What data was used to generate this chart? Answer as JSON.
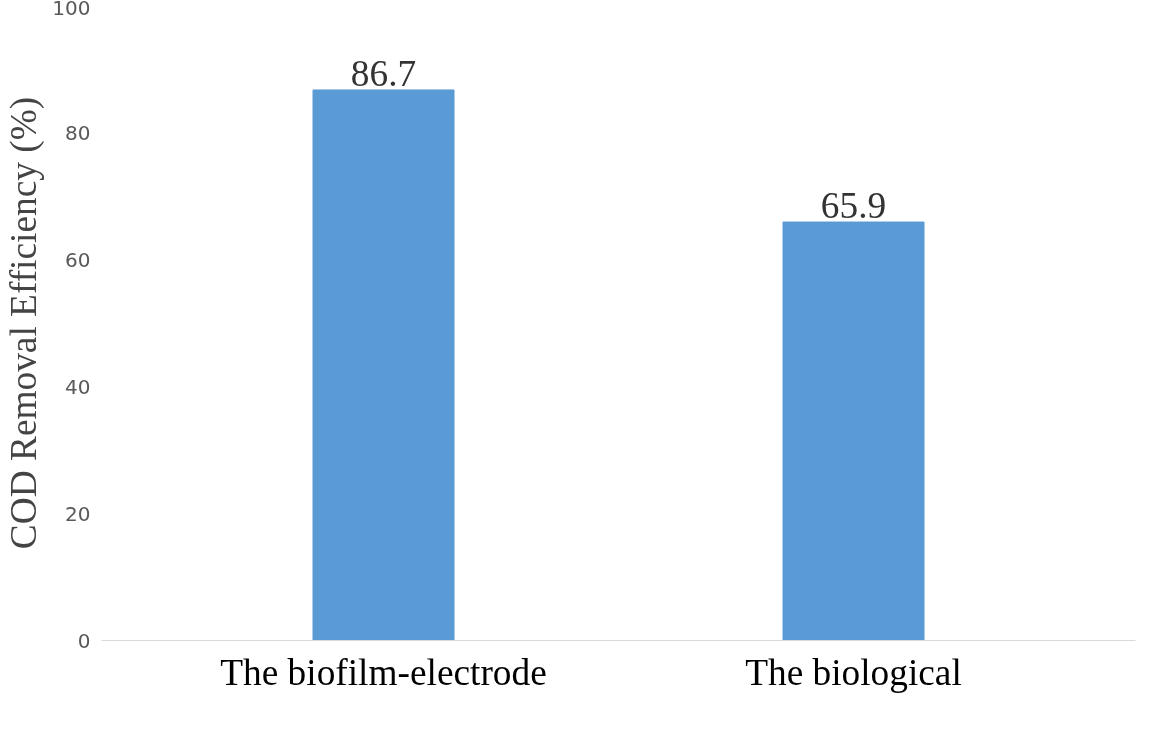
{
  "chart_data": {
    "type": "bar",
    "ylabel": "COD Removal Efficiency (%)",
    "categories": [
      "The biofilm-electrode",
      "The biological"
    ],
    "values": [
      86.7,
      65.9
    ],
    "color": "#5b9bd5",
    "ylim": [
      0,
      100
    ],
    "yticks": [
      0,
      20,
      40,
      60,
      80,
      100
    ],
    "grid": false,
    "data_labels": true
  }
}
